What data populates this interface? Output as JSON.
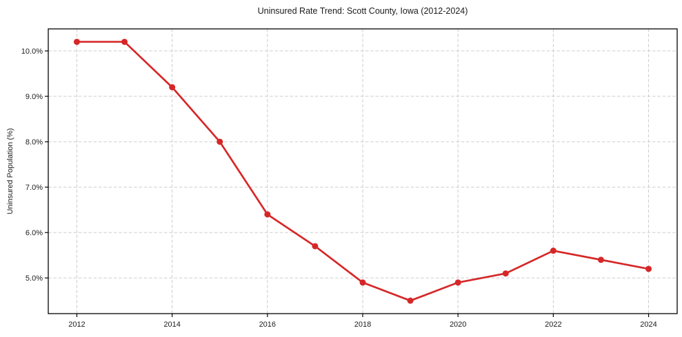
{
  "chart_data": {
    "type": "line",
    "title": "Uninsured Rate Trend: Scott County, Iowa (2012-2024)",
    "xlabel": "",
    "ylabel": "Uninsured Population (%)",
    "x": [
      2012,
      2013,
      2014,
      2015,
      2016,
      2017,
      2018,
      2019,
      2020,
      2021,
      2022,
      2023,
      2024
    ],
    "values": [
      10.2,
      10.2,
      9.2,
      8.0,
      6.4,
      5.7,
      4.9,
      4.5,
      4.9,
      5.1,
      5.6,
      5.4,
      5.2
    ],
    "xlim": [
      2011.4,
      2024.6
    ],
    "ylim": [
      4.215,
      10.485
    ],
    "xticks": [
      2012,
      2014,
      2016,
      2018,
      2020,
      2022,
      2024
    ],
    "xticklabels": [
      "2012",
      "2014",
      "2016",
      "2018",
      "2020",
      "2022",
      "2024"
    ],
    "yticks": [
      5,
      6,
      7,
      8,
      9,
      10
    ],
    "yticklabels": [
      "5.0%",
      "6.0%",
      "7.0%",
      "8.0%",
      "9.0%",
      "10.0%"
    ],
    "grid": true,
    "grid_style": "dashed",
    "legend": false,
    "marker": "circle",
    "line_color": "#d62728",
    "marker_color": "#d62728",
    "grid_color": "#cccccc",
    "axis_color": "#000000",
    "text_color": "#1a1a1a",
    "background_color": "#ffffff"
  }
}
